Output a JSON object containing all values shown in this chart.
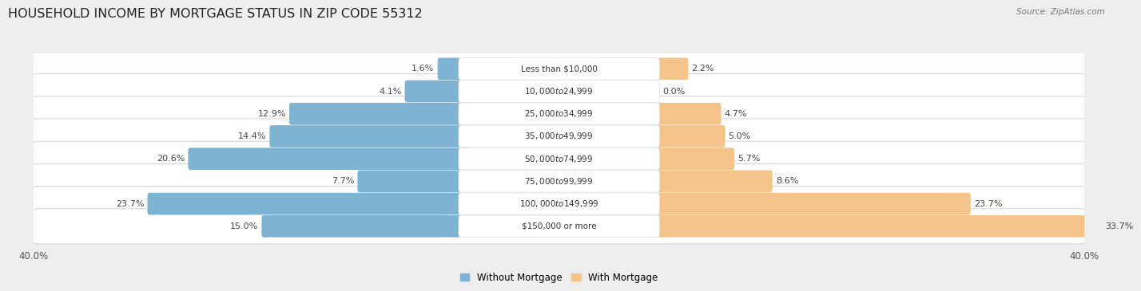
{
  "title": "HOUSEHOLD INCOME BY MORTGAGE STATUS IN ZIP CODE 55312",
  "source": "Source: ZipAtlas.com",
  "categories": [
    "Less than $10,000",
    "$10,000 to $24,999",
    "$25,000 to $34,999",
    "$35,000 to $49,999",
    "$50,000 to $74,999",
    "$75,000 to $99,999",
    "$100,000 to $149,999",
    "$150,000 or more"
  ],
  "without_mortgage": [
    1.6,
    4.1,
    12.9,
    14.4,
    20.6,
    7.7,
    23.7,
    15.0
  ],
  "with_mortgage": [
    2.2,
    0.0,
    4.7,
    5.0,
    5.7,
    8.6,
    23.7,
    33.7
  ],
  "without_mortgage_color": "#7fb3d3",
  "with_mortgage_color": "#f5c48a",
  "xlim": 40.0,
  "background_color": "#eeeeee",
  "title_fontsize": 11.5,
  "axis_label_fontsize": 8.5,
  "bar_label_fontsize": 8,
  "category_fontsize": 7.5,
  "legend_fontsize": 8.5
}
